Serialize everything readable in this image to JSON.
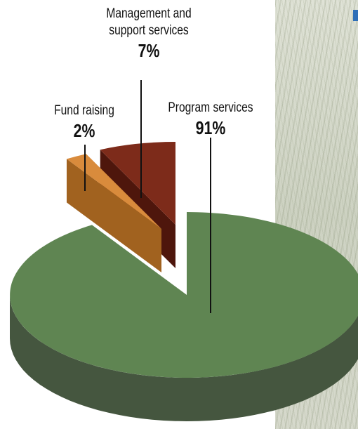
{
  "chart_data": {
    "type": "pie",
    "style": "3d-exploded",
    "title": "",
    "slices": [
      {
        "label": "Program services",
        "value": 91,
        "value_label": "91%",
        "color": "#5f8552",
        "side_color": "#45563f"
      },
      {
        "label": "Fund raising",
        "value": 2,
        "value_label": "2%",
        "color": "#d98b3c",
        "side_color": "#a1621f"
      },
      {
        "label": "Management and support services",
        "value": 7,
        "value_label": "7%",
        "color": "#7d2b1a",
        "side_color": "#4e160c"
      }
    ]
  },
  "labels": {
    "program": {
      "name": "Program services",
      "pct": "91%"
    },
    "fund": {
      "name": "Fund raising",
      "pct": "2%"
    },
    "management": {
      "line1": "Management and",
      "line2": "support services",
      "pct": "7%"
    }
  }
}
